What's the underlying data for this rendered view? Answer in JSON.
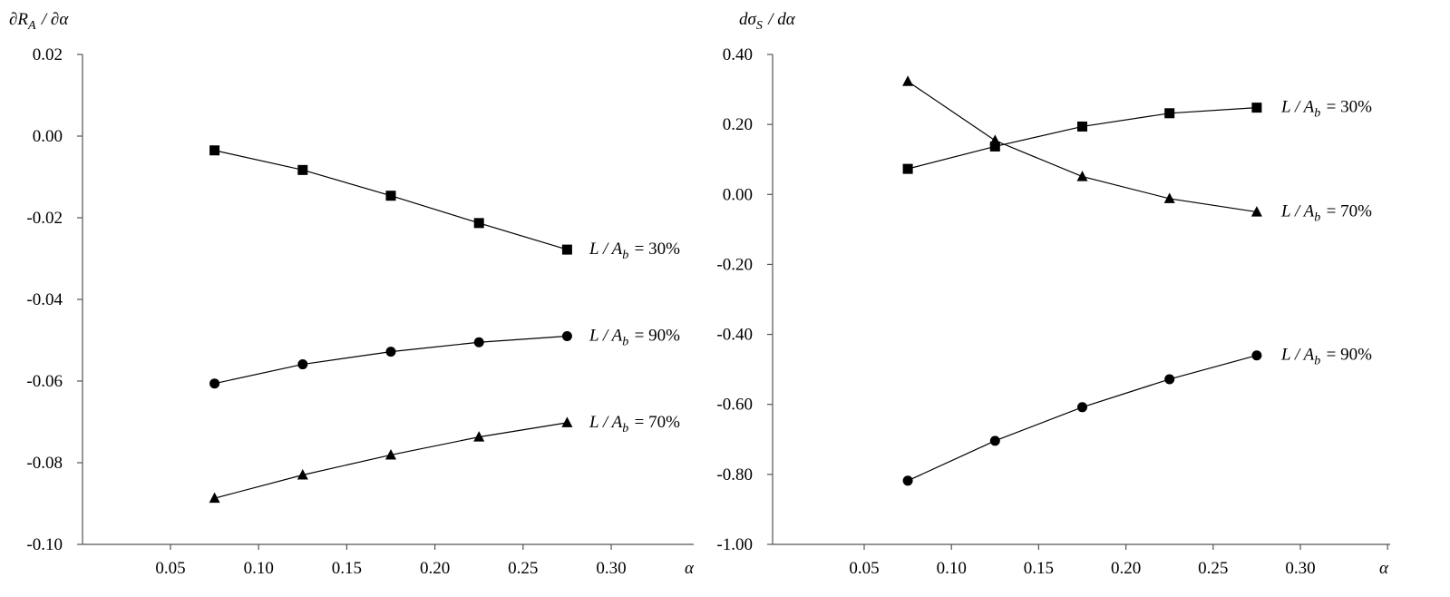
{
  "chart_data": [
    {
      "type": "line",
      "ylabel": "∂R_A / ∂α",
      "xlabel": "α",
      "xlim": [
        0,
        0.35
      ],
      "ylim": [
        -0.1,
        0.02
      ],
      "x_ticks": [
        0.05,
        0.1,
        0.15,
        0.2,
        0.25,
        0.3
      ],
      "x_tick_labels": [
        "0.05",
        "0.10",
        "0.15",
        "0.20",
        "0.25",
        "0.30"
      ],
      "y_ticks": [
        0.02,
        0.0,
        -0.02,
        -0.04,
        -0.06,
        -0.08,
        -0.1
      ],
      "y_tick_labels": [
        "0.02",
        "0.00",
        "-0.02",
        "-0.04",
        "-0.06",
        "-0.08",
        "-0.10"
      ],
      "grid": false,
      "x": [
        0.075,
        0.125,
        0.175,
        0.225,
        0.275
      ],
      "series": [
        {
          "name": "L / A_b = 30%",
          "marker": "square",
          "values": [
            -0.0035,
            -0.0083,
            -0.0146,
            -0.0213,
            -0.0278
          ]
        },
        {
          "name": "L / A_b = 90%",
          "marker": "circle",
          "values": [
            -0.0606,
            -0.0559,
            -0.0528,
            -0.0505,
            -0.049
          ]
        },
        {
          "name": "L / A_b = 70%",
          "marker": "triangle",
          "values": [
            -0.0887,
            -0.083,
            -0.0781,
            -0.0737,
            -0.0702
          ]
        }
      ]
    },
    {
      "type": "line",
      "ylabel": "dσ_S / dα",
      "xlabel": "α",
      "xlim": [
        0,
        0.35
      ],
      "ylim": [
        -1.0,
        0.4
      ],
      "x_ticks": [
        0.05,
        0.1,
        0.15,
        0.2,
        0.25,
        0.3
      ],
      "x_tick_labels": [
        "0.05",
        "0.10",
        "0.15",
        "0.20",
        "0.25",
        "0.30"
      ],
      "y_ticks": [
        0.4,
        0.2,
        0.0,
        -0.2,
        -0.4,
        -0.6,
        -0.8,
        -1.0
      ],
      "y_tick_labels": [
        "0.40",
        "0.20",
        "0.00",
        "-0.20",
        "-0.40",
        "-0.60",
        "-0.80",
        "-1.00"
      ],
      "grid": false,
      "x": [
        0.075,
        0.125,
        0.175,
        0.225,
        0.275
      ],
      "series": [
        {
          "name": "L / A_b = 30%",
          "marker": "square",
          "values": [
            0.073,
            0.137,
            0.194,
            0.232,
            0.248
          ]
        },
        {
          "name": "L / A_b = 70%",
          "marker": "triangle",
          "values": [
            0.323,
            0.154,
            0.051,
            -0.012,
            -0.05
          ]
        },
        {
          "name": "L / A_b = 90%",
          "marker": "circle",
          "values": [
            -0.818,
            -0.704,
            -0.608,
            -0.528,
            -0.46
          ]
        }
      ]
    }
  ]
}
